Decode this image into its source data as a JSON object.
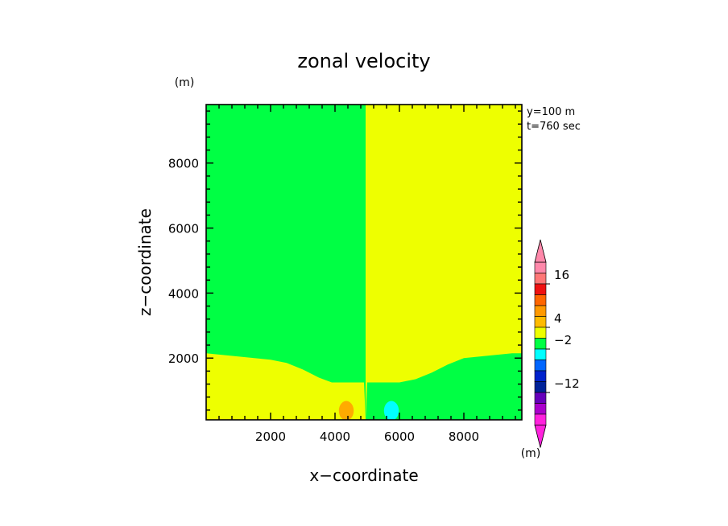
{
  "chart_data": {
    "type": "heatmap",
    "title": "zonal velocity",
    "xlabel": "x−coordinate",
    "ylabel": "z−coordinate",
    "x_unit": "(m)",
    "y_unit": "(m)",
    "info_lines": [
      "y=100  m",
      "t=760 sec"
    ],
    "xlim": [
      0,
      9800
    ],
    "ylim": [
      100,
      9800
    ],
    "xticks": [
      2000,
      4000,
      6000,
      8000
    ],
    "yticks": [
      2000,
      4000,
      6000,
      8000
    ],
    "xtick_labels": [
      "2000",
      "4000",
      "6000",
      "8000"
    ],
    "ytick_labels": [
      "2000",
      "4000",
      "6000",
      "8000"
    ],
    "colors": {
      "green": "#00ff44",
      "yellow": "#eeff00",
      "orange": "#ffaa00",
      "cyan": "#00ffff"
    },
    "regions": [
      {
        "label": "upper-left",
        "color": "green",
        "x_range": [
          0,
          4950
        ],
        "z_above": "interface"
      },
      {
        "label": "upper-right",
        "color": "yellow",
        "x_range": [
          4950,
          9800
        ],
        "z_above": "interface"
      },
      {
        "label": "lower-left",
        "color": "yellow",
        "x_range": [
          0,
          4950
        ],
        "z_below": "interface"
      },
      {
        "label": "lower-right",
        "color": "green",
        "x_range": [
          4950,
          9800
        ],
        "z_below": "interface"
      }
    ],
    "interface": {
      "x": [
        0,
        500,
        1000,
        1500,
        2000,
        2500,
        3000,
        3500,
        3900,
        4300,
        4900,
        5000,
        5500,
        6000,
        6500,
        7000,
        7500,
        8000,
        8500,
        9000,
        9500,
        9800
      ],
      "z": [
        2150,
        2100,
        2050,
        2000,
        1950,
        1850,
        1650,
        1400,
        1250,
        1250,
        1250,
        1250,
        1250,
        1250,
        1350,
        1550,
        1800,
        2000,
        2050,
        2100,
        2150,
        2150
      ]
    },
    "blobs": [
      {
        "color": "orange",
        "x_center": 4350,
        "z_center": 380,
        "x_halfwidth": 230,
        "z_halfheight": 300
      },
      {
        "color": "cyan",
        "x_center": 5750,
        "z_center": 380,
        "x_halfwidth": 230,
        "z_halfheight": 300
      }
    ],
    "colorbar": {
      "colors": [
        "#ff88aa",
        "#ff7777",
        "#ee1111",
        "#ff6600",
        "#ff9900",
        "#ffbb00",
        "#eeff00",
        "#00ff44",
        "#00ffff",
        "#0066ff",
        "#0022cc",
        "#002299",
        "#6600bb",
        "#aa00cc",
        "#ff22dd"
      ],
      "labels": [
        {
          "text": "16",
          "index": 1
        },
        {
          "text": "4",
          "index": 5
        },
        {
          "text": "−2",
          "index": 7
        },
        {
          "text": "−12",
          "index": 11
        }
      ],
      "extend": "both"
    }
  }
}
